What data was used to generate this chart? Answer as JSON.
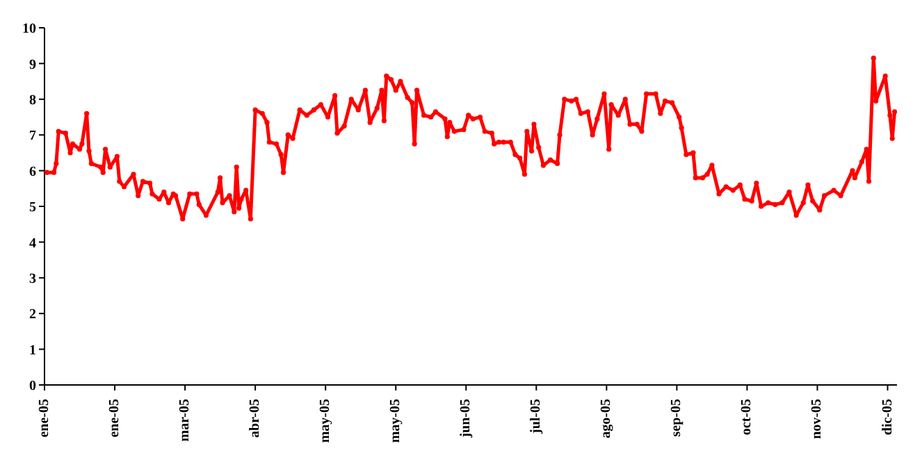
{
  "chart_data": {
    "type": "line",
    "x": [
      "2005-01-02",
      "2005-01-05",
      "2005-01-06",
      "2005-01-07",
      "2005-01-10",
      "2005-01-12",
      "2005-01-13",
      "2005-01-16",
      "2005-01-17",
      "2005-01-19",
      "2005-01-20",
      "2005-01-21",
      "2005-01-25",
      "2005-01-26",
      "2005-01-27",
      "2005-01-29",
      "2005-02-01",
      "2005-02-02",
      "2005-02-04",
      "2005-02-08",
      "2005-02-10",
      "2005-02-12",
      "2005-02-15",
      "2005-02-16",
      "2005-02-19",
      "2005-02-21",
      "2005-02-23",
      "2005-02-25",
      "2005-02-26",
      "2005-03-01",
      "2005-03-04",
      "2005-03-07",
      "2005-03-08",
      "2005-03-11",
      "2005-03-16",
      "2005-03-17",
      "2005-03-18",
      "2005-03-21",
      "2005-03-23",
      "2005-03-24",
      "2005-03-25",
      "2005-03-26",
      "2005-03-28",
      "2005-03-30",
      "2005-04-01",
      "2005-04-04",
      "2005-04-06",
      "2005-04-07",
      "2005-04-10",
      "2005-04-12",
      "2005-04-13",
      "2005-04-15",
      "2005-04-17",
      "2005-04-20",
      "2005-04-23",
      "2005-04-26",
      "2005-04-29",
      "2005-05-02",
      "2005-05-05",
      "2005-05-06",
      "2005-05-09",
      "2005-05-12",
      "2005-05-15",
      "2005-05-18",
      "2005-05-20",
      "2005-05-23",
      "2005-05-25",
      "2005-05-26",
      "2005-05-27",
      "2005-05-29",
      "2005-05-31",
      "2005-06-02",
      "2005-06-05",
      "2005-06-07",
      "2005-06-08",
      "2005-06-09",
      "2005-06-12",
      "2005-06-15",
      "2005-06-17",
      "2005-06-21",
      "2005-06-22",
      "2005-06-23",
      "2005-06-25",
      "2005-06-29",
      "2005-07-01",
      "2005-07-03",
      "2005-07-06",
      "2005-07-08",
      "2005-07-11",
      "2005-07-12",
      "2005-07-14",
      "2005-07-16",
      "2005-07-19",
      "2005-07-21",
      "2005-07-23",
      "2005-07-25",
      "2005-07-26",
      "2005-07-28",
      "2005-07-29",
      "2005-07-31",
      "2005-08-02",
      "2005-08-05",
      "2005-08-08",
      "2005-08-09",
      "2005-08-11",
      "2005-08-14",
      "2005-08-16",
      "2005-08-18",
      "2005-08-21",
      "2005-08-23",
      "2005-08-25",
      "2005-08-28",
      "2005-08-30",
      "2005-08-31",
      "2005-09-03",
      "2005-09-06",
      "2005-09-08",
      "2005-09-11",
      "2005-09-13",
      "2005-09-15",
      "2005-09-19",
      "2005-09-21",
      "2005-09-23",
      "2005-09-26",
      "2005-09-29",
      "2005-09-30",
      "2005-10-02",
      "2005-10-05",
      "2005-10-06",
      "2005-10-09",
      "2005-10-11",
      "2005-10-13",
      "2005-10-16",
      "2005-10-19",
      "2005-10-22",
      "2005-10-25",
      "2005-10-27",
      "2005-10-30",
      "2005-11-01",
      "2005-11-03",
      "2005-11-06",
      "2005-11-09",
      "2005-11-12",
      "2005-11-15",
      "2005-11-18",
      "2005-11-21",
      "2005-11-23",
      "2005-11-25",
      "2005-11-28",
      "2005-11-30",
      "2005-12-04",
      "2005-12-07",
      "2005-12-12",
      "2005-12-13",
      "2005-12-16",
      "2005-12-18",
      "2005-12-19",
      "2005-12-21",
      "2005-12-22",
      "2005-12-26",
      "2005-12-28",
      "2005-12-29",
      "2005-12-30"
    ],
    "series": [
      {
        "color": "#ff0000",
        "values": [
          5.95,
          5.95,
          6.2,
          7.1,
          7.05,
          6.5,
          6.75,
          6.6,
          6.75,
          7.6,
          6.55,
          6.2,
          6.1,
          5.95,
          6.6,
          6.1,
          6.4,
          5.7,
          5.55,
          5.9,
          5.3,
          5.7,
          5.65,
          5.35,
          5.2,
          5.4,
          5.1,
          5.35,
          5.3,
          4.65,
          5.35,
          5.35,
          5.05,
          4.75,
          5.4,
          5.8,
          5.1,
          5.3,
          4.85,
          6.1,
          4.95,
          5.2,
          5.45,
          4.65,
          7.7,
          7.6,
          7.35,
          6.8,
          6.75,
          6.45,
          5.95,
          7.0,
          6.9,
          7.7,
          7.55,
          7.7,
          7.85,
          7.5,
          8.1,
          7.05,
          7.25,
          8.0,
          7.7,
          8.25,
          7.35,
          7.75,
          8.25,
          7.4,
          8.65,
          8.55,
          8.25,
          8.5,
          8.05,
          7.9,
          6.75,
          8.25,
          7.55,
          7.5,
          7.65,
          7.45,
          6.95,
          7.35,
          7.1,
          7.15,
          7.55,
          7.45,
          7.5,
          7.1,
          7.05,
          6.75,
          6.8,
          6.8,
          6.8,
          6.45,
          6.35,
          5.9,
          7.1,
          6.55,
          7.3,
          6.65,
          6.15,
          6.3,
          6.2,
          7.0,
          8.0,
          7.95,
          8.0,
          7.6,
          7.65,
          7.0,
          7.45,
          8.15,
          6.6,
          7.85,
          7.55,
          8.0,
          7.3,
          7.3,
          7.1,
          8.15,
          8.15,
          7.6,
          7.95,
          7.9,
          7.5,
          7.2,
          6.45,
          6.5,
          5.8,
          5.8,
          5.9,
          6.15,
          5.35,
          5.55,
          5.45,
          5.6,
          5.2,
          5.15,
          5.65,
          5.0,
          5.1,
          5.05,
          5.1,
          5.4,
          4.75,
          5.1,
          5.6,
          5.15,
          4.9,
          5.3,
          5.45,
          5.3,
          6.0,
          5.8,
          6.25,
          6.6,
          5.7,
          9.15,
          7.95,
          8.65,
          7.55,
          6.9,
          7.65
        ]
      }
    ],
    "xlim": [
      "2005-01-01",
      "2005-12-31"
    ],
    "xticks": [
      {
        "value": "2005-01-01",
        "label": "ene-05"
      },
      {
        "value": "2005-01-31",
        "label": "ene-05"
      },
      {
        "value": "2005-03-02",
        "label": "mar-05"
      },
      {
        "value": "2005-04-01",
        "label": "abr-05"
      },
      {
        "value": "2005-05-01",
        "label": "may-05"
      },
      {
        "value": "2005-05-31",
        "label": "may-05"
      },
      {
        "value": "2005-06-30",
        "label": "jun-05"
      },
      {
        "value": "2005-07-30",
        "label": "jul-05"
      },
      {
        "value": "2005-08-29",
        "label": "ago-05"
      },
      {
        "value": "2005-09-28",
        "label": "sep-05"
      },
      {
        "value": "2005-10-28",
        "label": "oct-05"
      },
      {
        "value": "2005-11-27",
        "label": "nov-05"
      },
      {
        "value": "2005-12-27",
        "label": "dic-05"
      }
    ],
    "ylim": [
      0,
      10
    ],
    "yticks": [
      0,
      1,
      2,
      3,
      4,
      5,
      6,
      7,
      8,
      9,
      10
    ],
    "grid": false,
    "legend": false,
    "marker": "circle",
    "line_style": "solid"
  }
}
